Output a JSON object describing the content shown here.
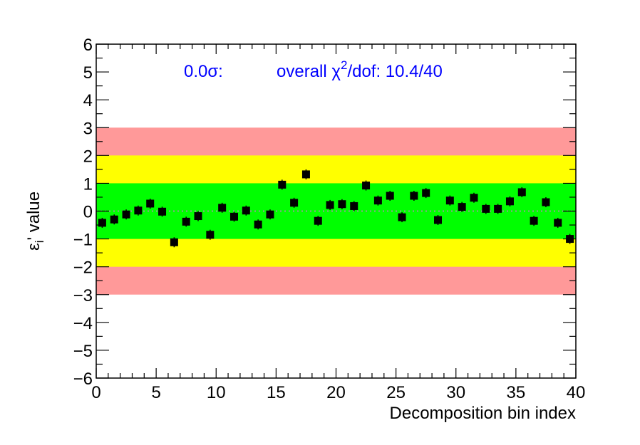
{
  "chart_data": {
    "type": "scatter",
    "xlabel": "Decomposition bin index",
    "ylabel": "ε",
    "ylabel_sub": "i",
    "ylabel_rest": "' value",
    "xlim": [
      0,
      40
    ],
    "ylim": [
      -6,
      6
    ],
    "x_ticks": [
      "0",
      "5",
      "10",
      "15",
      "20",
      "25",
      "30",
      "35",
      "40"
    ],
    "y_ticks": [
      "−6",
      "−5",
      "−4",
      "−3",
      "−2",
      "−1",
      "0",
      "1",
      "2",
      "3",
      "4",
      "5",
      "6"
    ],
    "bands": [
      {
        "from": -3,
        "to": 3,
        "color": "#ff9999"
      },
      {
        "from": -2,
        "to": 2,
        "color": "#ffff00"
      },
      {
        "from": -1,
        "to": 1,
        "color": "#00ff00"
      }
    ],
    "zero_line": {
      "y": 0,
      "style": "dotted",
      "color": "#999999"
    },
    "marker_color": "#000000",
    "annotation_sigma": "0.0σ:",
    "annotation_chi_prefix": "overall χ",
    "annotation_chi_sup": "2",
    "annotation_chi_suffix": "/dof: 10.4/40",
    "annotation_color": "#0000ff",
    "grid": false,
    "x": [
      0.5,
      1.5,
      2.5,
      3.5,
      4.5,
      5.5,
      6.5,
      7.5,
      8.5,
      9.5,
      10.5,
      11.5,
      12.5,
      13.5,
      14.5,
      15.5,
      16.5,
      17.5,
      18.5,
      19.5,
      20.5,
      21.5,
      22.5,
      23.5,
      24.5,
      25.5,
      26.5,
      27.5,
      28.5,
      29.5,
      30.5,
      31.5,
      32.5,
      33.5,
      34.5,
      35.5,
      36.5,
      37.5,
      38.5,
      39.5
    ],
    "y": [
      -0.42,
      -0.3,
      -0.12,
      0.02,
      0.27,
      -0.02,
      -1.12,
      -0.38,
      -0.18,
      -0.85,
      0.12,
      -0.2,
      0.02,
      -0.48,
      -0.12,
      0.95,
      0.3,
      1.32,
      -0.35,
      0.22,
      0.25,
      0.18,
      0.92,
      0.38,
      0.55,
      -0.22,
      0.55,
      0.65,
      -0.32,
      0.38,
      0.15,
      0.48,
      0.08,
      0.08,
      0.35,
      0.68,
      -0.35,
      0.32,
      -0.42,
      -1.0
    ]
  }
}
